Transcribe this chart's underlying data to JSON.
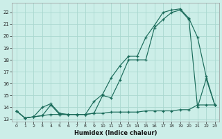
{
  "title": "",
  "xlabel": "Humidex (Indice chaleur)",
  "bg_color": "#cceee8",
  "grid_color": "#aad8d0",
  "line_color": "#1a6b5a",
  "xlim": [
    -0.5,
    23.5
  ],
  "ylim": [
    12.8,
    22.8
  ],
  "yticks": [
    13,
    14,
    15,
    16,
    17,
    18,
    19,
    20,
    21,
    22
  ],
  "xticks": [
    0,
    1,
    2,
    3,
    4,
    5,
    6,
    7,
    8,
    9,
    10,
    11,
    12,
    13,
    14,
    15,
    16,
    17,
    18,
    19,
    20,
    21,
    22,
    23
  ],
  "line1_x": [
    0,
    1,
    2,
    3,
    4,
    5,
    6,
    7,
    8,
    9,
    10,
    11,
    12,
    13,
    14,
    15,
    16,
    17,
    18,
    19,
    20,
    21,
    22,
    23
  ],
  "line1_y": [
    13.7,
    13.1,
    13.2,
    13.3,
    13.4,
    13.4,
    13.4,
    13.4,
    13.4,
    13.5,
    13.5,
    13.6,
    13.6,
    13.6,
    13.6,
    13.7,
    13.7,
    13.7,
    13.7,
    13.8,
    13.8,
    14.2,
    14.2,
    14.2
  ],
  "line2_x": [
    0,
    1,
    2,
    3,
    4,
    5,
    6,
    7,
    8,
    9,
    10,
    11,
    12,
    13,
    14,
    15,
    16,
    17,
    18,
    19,
    20,
    21,
    22,
    23
  ],
  "line2_y": [
    13.7,
    13.1,
    13.2,
    14.0,
    14.3,
    13.5,
    13.4,
    13.4,
    13.4,
    14.5,
    15.1,
    16.5,
    17.5,
    18.3,
    18.3,
    19.9,
    20.9,
    22.0,
    22.2,
    22.3,
    21.5,
    19.9,
    16.6,
    14.2
  ],
  "line3_x": [
    0,
    1,
    2,
    3,
    4,
    5,
    6,
    7,
    8,
    9,
    10,
    11,
    12,
    13,
    14,
    15,
    16,
    17,
    18,
    19,
    20,
    21,
    22,
    23
  ],
  "line3_y": [
    13.7,
    13.1,
    13.2,
    13.3,
    14.2,
    13.4,
    13.4,
    13.4,
    13.4,
    13.5,
    15.0,
    14.8,
    16.3,
    18.0,
    18.0,
    18.0,
    20.7,
    21.4,
    22.0,
    22.2,
    21.4,
    14.0,
    16.4,
    14.2
  ]
}
